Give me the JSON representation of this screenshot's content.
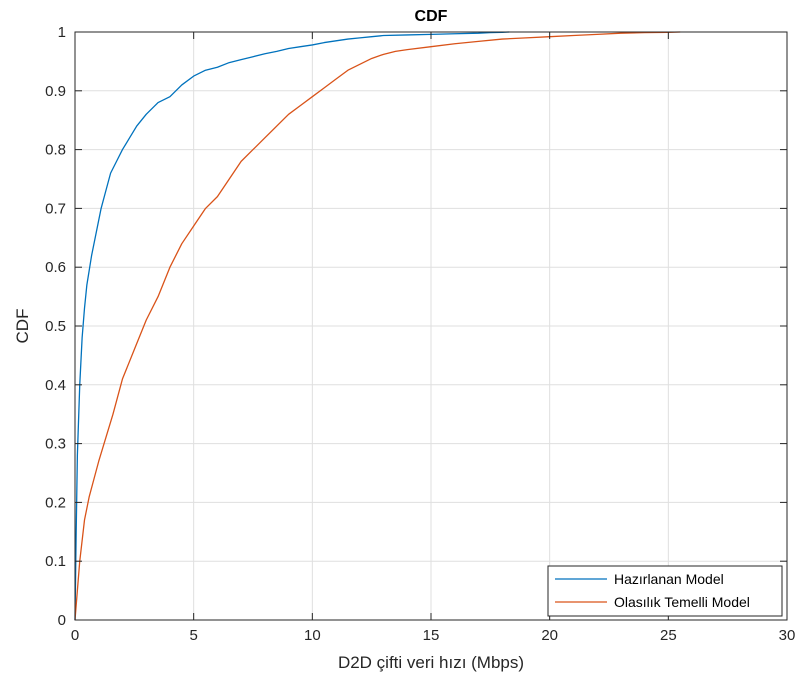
{
  "chart_data": {
    "type": "line",
    "title": "CDF",
    "xlabel": "D2D çifti  veri hızı (Mbps)",
    "ylabel": "CDF",
    "xlim": [
      0,
      30
    ],
    "ylim": [
      0,
      1
    ],
    "xticks": [
      "0",
      "5",
      "10",
      "15",
      "20",
      "25",
      "30"
    ],
    "yticks": [
      "0",
      "0.1",
      "0.2",
      "0.3",
      "0.4",
      "0.5",
      "0.6",
      "0.7",
      "0.8",
      "0.9",
      "1"
    ],
    "grid": true,
    "legend_position": "bottom-right",
    "series": [
      {
        "name": "Hazırlanan Model",
        "color": "#0072BD",
        "x": [
          0,
          0.05,
          0.1,
          0.2,
          0.3,
          0.4,
          0.5,
          0.7,
          0.9,
          1.1,
          1.3,
          1.5,
          1.75,
          2.0,
          2.3,
          2.6,
          3.0,
          3.5,
          4.0,
          4.5,
          5.0,
          5.5,
          6.0,
          6.5,
          7.0,
          7.5,
          8.0,
          8.5,
          9.0,
          9.5,
          10.0,
          10.5,
          11.0,
          11.5,
          12.0,
          12.5,
          13.0,
          14.0,
          15.0,
          16.0,
          17.0,
          17.5,
          18.0,
          18.3
        ],
        "y": [
          0,
          0.15,
          0.28,
          0.4,
          0.48,
          0.53,
          0.57,
          0.62,
          0.66,
          0.7,
          0.73,
          0.76,
          0.78,
          0.8,
          0.82,
          0.84,
          0.86,
          0.88,
          0.89,
          0.91,
          0.925,
          0.935,
          0.94,
          0.948,
          0.953,
          0.958,
          0.963,
          0.967,
          0.972,
          0.975,
          0.978,
          0.982,
          0.985,
          0.988,
          0.99,
          0.992,
          0.994,
          0.995,
          0.996,
          0.997,
          0.998,
          0.999,
          0.9995,
          1.0
        ]
      },
      {
        "name": "Olasılık Temelli Model",
        "color": "#D95319",
        "x": [
          0,
          0.1,
          0.2,
          0.4,
          0.6,
          0.8,
          1.0,
          1.3,
          1.6,
          2.0,
          2.5,
          3.0,
          3.5,
          4.0,
          4.5,
          5.0,
          5.5,
          6.0,
          6.5,
          7.0,
          7.5,
          8.0,
          8.5,
          9.0,
          9.5,
          10.0,
          10.5,
          11.0,
          11.5,
          12.0,
          12.5,
          13.0,
          13.5,
          14.0,
          15.0,
          16.0,
          17.0,
          18.0,
          19.0,
          20.0,
          21.0,
          22.0,
          23.0,
          24.0,
          25.0,
          25.5
        ],
        "y": [
          0,
          0.05,
          0.1,
          0.17,
          0.21,
          0.24,
          0.27,
          0.31,
          0.35,
          0.41,
          0.46,
          0.51,
          0.55,
          0.6,
          0.64,
          0.67,
          0.7,
          0.72,
          0.75,
          0.78,
          0.8,
          0.82,
          0.84,
          0.86,
          0.875,
          0.89,
          0.905,
          0.92,
          0.935,
          0.945,
          0.955,
          0.962,
          0.967,
          0.97,
          0.975,
          0.98,
          0.984,
          0.988,
          0.99,
          0.992,
          0.994,
          0.996,
          0.998,
          0.999,
          0.9995,
          1.0
        ]
      }
    ]
  }
}
